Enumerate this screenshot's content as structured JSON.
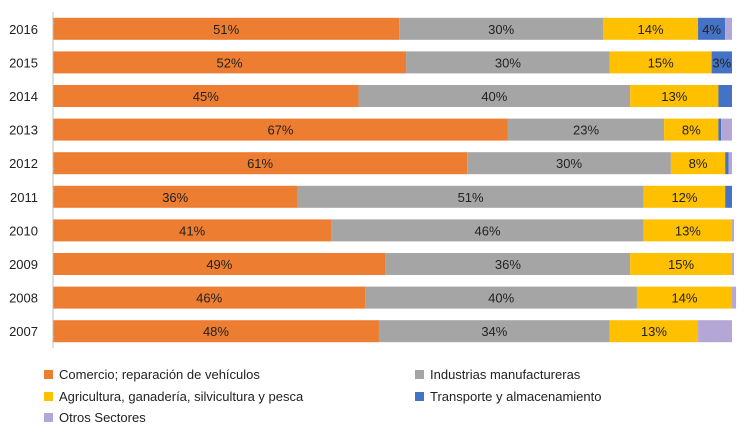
{
  "chart_data": {
    "type": "bar",
    "orientation": "horizontal",
    "stacked": true,
    "categories": [
      "2016",
      "2015",
      "2014",
      "2013",
      "2012",
      "2011",
      "2010",
      "2009",
      "2008",
      "2007"
    ],
    "series": [
      {
        "name": "Comercio; reparación de vehículos",
        "color": "#ED7D31",
        "values": [
          51,
          52,
          45,
          67,
          61,
          36,
          41,
          49,
          46,
          48
        ]
      },
      {
        "name": "Industrias manufactureras",
        "color": "#A5A5A5",
        "values": [
          30,
          30,
          40,
          23,
          30,
          51,
          46,
          36,
          40,
          34
        ]
      },
      {
        "name": "Agricultura, ganadería,  silvicultura y pesca",
        "color": "#FFC000",
        "values": [
          14,
          15,
          13,
          8,
          8,
          12,
          13,
          15,
          14,
          13
        ]
      },
      {
        "name": "Transporte y almacenamiento",
        "color": "#4472C4",
        "values": [
          4,
          3,
          2,
          0.4,
          0.5,
          1,
          0,
          0,
          0,
          0
        ]
      },
      {
        "name": "Otros Sectores",
        "color": "#B4A7D6",
        "values": [
          1,
          0,
          0,
          1.6,
          0.5,
          0,
          0.3,
          0.3,
          0.6,
          5
        ]
      }
    ],
    "labels": [
      [
        "51%",
        "30%",
        "14%",
        "4%",
        ""
      ],
      [
        "52%",
        "30%",
        "15%",
        "3%",
        ""
      ],
      [
        "45%",
        "40%",
        "13%",
        "",
        ""
      ],
      [
        "67%",
        "23%",
        "8%",
        "",
        ""
      ],
      [
        "61%",
        "30%",
        "8%",
        "",
        ""
      ],
      [
        "36%",
        "51%",
        "12%",
        "",
        ""
      ],
      [
        "41%",
        "46%",
        "13%",
        "",
        ""
      ],
      [
        "49%",
        "36%",
        "15%",
        "",
        ""
      ],
      [
        "46%",
        "40%",
        "14%",
        "",
        ""
      ],
      [
        "48%",
        "34%",
        "13%",
        "",
        ""
      ]
    ],
    "xlim": [
      0,
      100
    ],
    "gridlines": false,
    "legend_position": "bottom"
  }
}
